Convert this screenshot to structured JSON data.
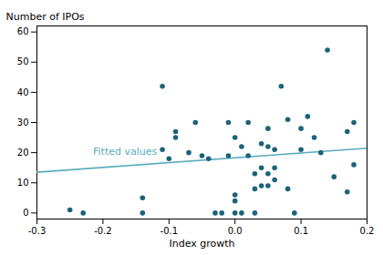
{
  "chart_data": {
    "type": "scatter",
    "xlabel": "Index growth",
    "ylabel": "Number of IPOs",
    "xlim": [
      -0.3,
      0.2
    ],
    "ylim": [
      -2,
      62
    ],
    "xticks": [
      -0.3,
      -0.2,
      -0.1,
      {
        "value": 0,
        "label": "0.0"
      },
      0.1,
      0.2
    ],
    "yticks": [
      0,
      10,
      20,
      30,
      40,
      50,
      60
    ],
    "grid": false,
    "series": [
      {
        "type": "scatter",
        "color": "#1a6378",
        "x": [
          -0.25,
          -0.23,
          -0.14,
          -0.14,
          -0.11,
          -0.11,
          -0.1,
          -0.09,
          -0.09,
          -0.07,
          -0.06,
          -0.05,
          -0.04,
          -0.03,
          -0.02,
          -0.01,
          -0.01,
          0,
          0,
          0,
          0,
          0.01,
          0.01,
          0.02,
          0.02,
          0.03,
          0.03,
          0.03,
          0.04,
          0.04,
          0.04,
          0.05,
          0.05,
          0.05,
          0.05,
          0.06,
          0.06,
          0.06,
          0.07,
          0.08,
          0.08,
          0.09,
          0.1,
          0.1,
          0.11,
          0.12,
          0.13,
          0.14,
          0.15,
          0.17,
          0.17,
          0.18,
          0.18
        ],
        "values": [
          1,
          0,
          5,
          0,
          42,
          21,
          18,
          27,
          25,
          20,
          30,
          19,
          18,
          0,
          0,
          30,
          19,
          25,
          6,
          4,
          0,
          22,
          0,
          30,
          19,
          13,
          8,
          0,
          23,
          15,
          9,
          28,
          22,
          13,
          9,
          21,
          15,
          11,
          42,
          31,
          8,
          0,
          28,
          21,
          32,
          25,
          20,
          54,
          12,
          27,
          7,
          30,
          16
        ]
      },
      {
        "type": "line",
        "color": "#5aacbe",
        "x": [
          -0.3,
          0.2
        ],
        "values": [
          13.5,
          21.5
        ]
      }
    ],
    "annotations": [
      {
        "text": "Fitted values",
        "x": -0.215,
        "y": 20.5,
        "color": "#5aacbe"
      }
    ]
  }
}
